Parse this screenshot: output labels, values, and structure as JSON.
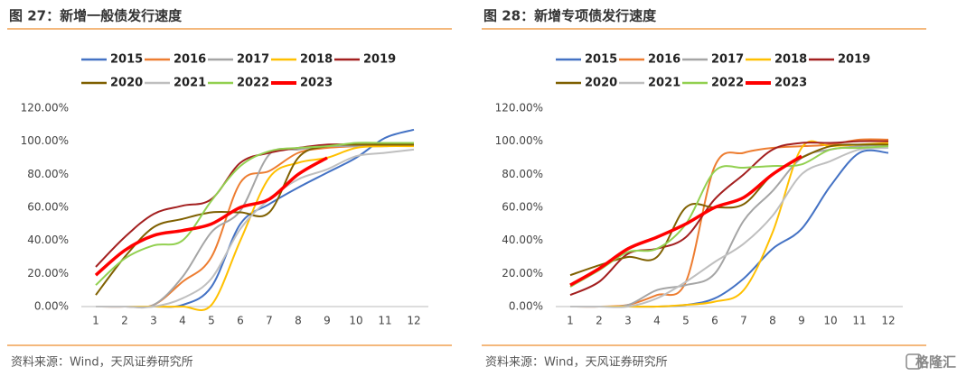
{
  "chart_data": [
    {
      "type": "line",
      "title": "图 27：新增一般债发行速度",
      "source": "资料来源：Wind，天风证券研究所",
      "x": [
        1,
        2,
        3,
        4,
        5,
        6,
        7,
        8,
        9,
        10,
        11,
        12
      ],
      "xlim": [
        0.5,
        12.5
      ],
      "xticks": [
        1,
        2,
        3,
        4,
        5,
        6,
        7,
        8,
        9,
        10,
        11,
        12
      ],
      "ylim": [
        0,
        120
      ],
      "yticks": [
        {
          "value": 0,
          "label": "0.00%"
        },
        {
          "value": 20,
          "label": "20.00%"
        },
        {
          "value": 40,
          "label": "40.00%"
        },
        {
          "value": 60,
          "label": "60.00%"
        },
        {
          "value": 80,
          "label": "80.00%"
        },
        {
          "value": 100,
          "label": "100.00%"
        },
        {
          "value": 120,
          "label": "120.00%"
        }
      ],
      "grid": false,
      "series": [
        {
          "name": "2015",
          "color": "#4472c4",
          "values": [
            0,
            0,
            0,
            1,
            12,
            50,
            62,
            72,
            81,
            90,
            102,
            107
          ]
        },
        {
          "name": "2016",
          "color": "#ed7d31",
          "values": [
            0,
            0,
            1,
            15,
            30,
            75,
            82,
            93,
            96,
            97,
            98,
            98
          ]
        },
        {
          "name": "2017",
          "color": "#a5a5a5",
          "values": [
            0,
            0,
            1,
            18,
            45,
            58,
            92,
            95,
            97,
            97,
            97,
            98
          ]
        },
        {
          "name": "2018",
          "color": "#ffc000",
          "values": [
            0,
            0,
            0,
            0,
            1,
            40,
            78,
            87,
            90,
            96,
            97,
            97
          ]
        },
        {
          "name": "2019",
          "color": "#a31f1f",
          "values": [
            24,
            42,
            56,
            61,
            65,
            87,
            93,
            96,
            98,
            98,
            98,
            98
          ]
        },
        {
          "name": "2020",
          "color": "#7f6000",
          "values": [
            7,
            30,
            48,
            53,
            57,
            57,
            57,
            90,
            97,
            98,
            98,
            98
          ]
        },
        {
          "name": "2021",
          "color": "#bfbfbf",
          "values": [
            0,
            0,
            0,
            5,
            17,
            47,
            65,
            77,
            83,
            91,
            93,
            95
          ]
        },
        {
          "name": "2022",
          "color": "#92d050",
          "values": [
            13,
            29,
            37,
            40,
            64,
            85,
            94,
            96,
            97,
            99,
            99,
            99
          ]
        },
        {
          "name": "2023",
          "color": "#ff0000",
          "values": [
            19,
            34,
            43,
            46,
            50,
            60,
            65,
            80,
            90,
            null,
            null,
            null
          ]
        }
      ]
    },
    {
      "type": "line",
      "title": "图 28：新增专项债发行速度",
      "source": "资料来源：Wind，天风证券研究所",
      "x": [
        1,
        2,
        3,
        4,
        5,
        6,
        7,
        8,
        9,
        10,
        11,
        12
      ],
      "xlim": [
        0.5,
        12.5
      ],
      "xticks": [
        1,
        2,
        3,
        4,
        5,
        6,
        7,
        8,
        9,
        10,
        11,
        12
      ],
      "ylim": [
        0,
        120
      ],
      "yticks": [
        {
          "value": 0,
          "label": "0.00%"
        },
        {
          "value": 20,
          "label": "20.00%"
        },
        {
          "value": 40,
          "label": "40.00%"
        },
        {
          "value": 60,
          "label": "60.00%"
        },
        {
          "value": 80,
          "label": "80.00%"
        },
        {
          "value": 100,
          "label": "100.00%"
        },
        {
          "value": 120,
          "label": "120.00%"
        }
      ],
      "grid": false,
      "series": [
        {
          "name": "2015",
          "color": "#4472c4",
          "values": [
            0,
            0,
            0,
            0,
            1,
            5,
            17,
            35,
            47,
            73,
            93,
            93
          ]
        },
        {
          "name": "2016",
          "color": "#ed7d31",
          "values": [
            0,
            0,
            1,
            7,
            15,
            85,
            93,
            96,
            97,
            98,
            101,
            101
          ]
        },
        {
          "name": "2017",
          "color": "#a5a5a5",
          "values": [
            0,
            0,
            1,
            10,
            13,
            20,
            52,
            70,
            90,
            95,
            97,
            98
          ]
        },
        {
          "name": "2018",
          "color": "#ffc000",
          "values": [
            0,
            0,
            0,
            0,
            1,
            3,
            10,
            45,
            96,
            97,
            98,
            99
          ]
        },
        {
          "name": "2019",
          "color": "#a31f1f",
          "values": [
            7,
            15,
            32,
            35,
            42,
            65,
            80,
            95,
            99,
            99,
            100,
            100
          ]
        },
        {
          "name": "2020",
          "color": "#7f6000",
          "values": [
            19,
            25,
            30,
            30,
            60,
            60,
            62,
            80,
            90,
            97,
            98,
            98
          ]
        },
        {
          "name": "2021",
          "color": "#bfbfbf",
          "values": [
            0,
            0,
            0,
            5,
            15,
            27,
            38,
            55,
            80,
            88,
            95,
            96
          ]
        },
        {
          "name": "2022",
          "color": "#92d050",
          "values": [
            12,
            22,
            33,
            35,
            50,
            82,
            84,
            85,
            86,
            95,
            96,
            97
          ]
        },
        {
          "name": "2023",
          "color": "#ff0000",
          "values": [
            13,
            23,
            35,
            42,
            50,
            60,
            66,
            80,
            91,
            null,
            null,
            null
          ]
        }
      ]
    }
  ],
  "watermark": "格隆汇"
}
